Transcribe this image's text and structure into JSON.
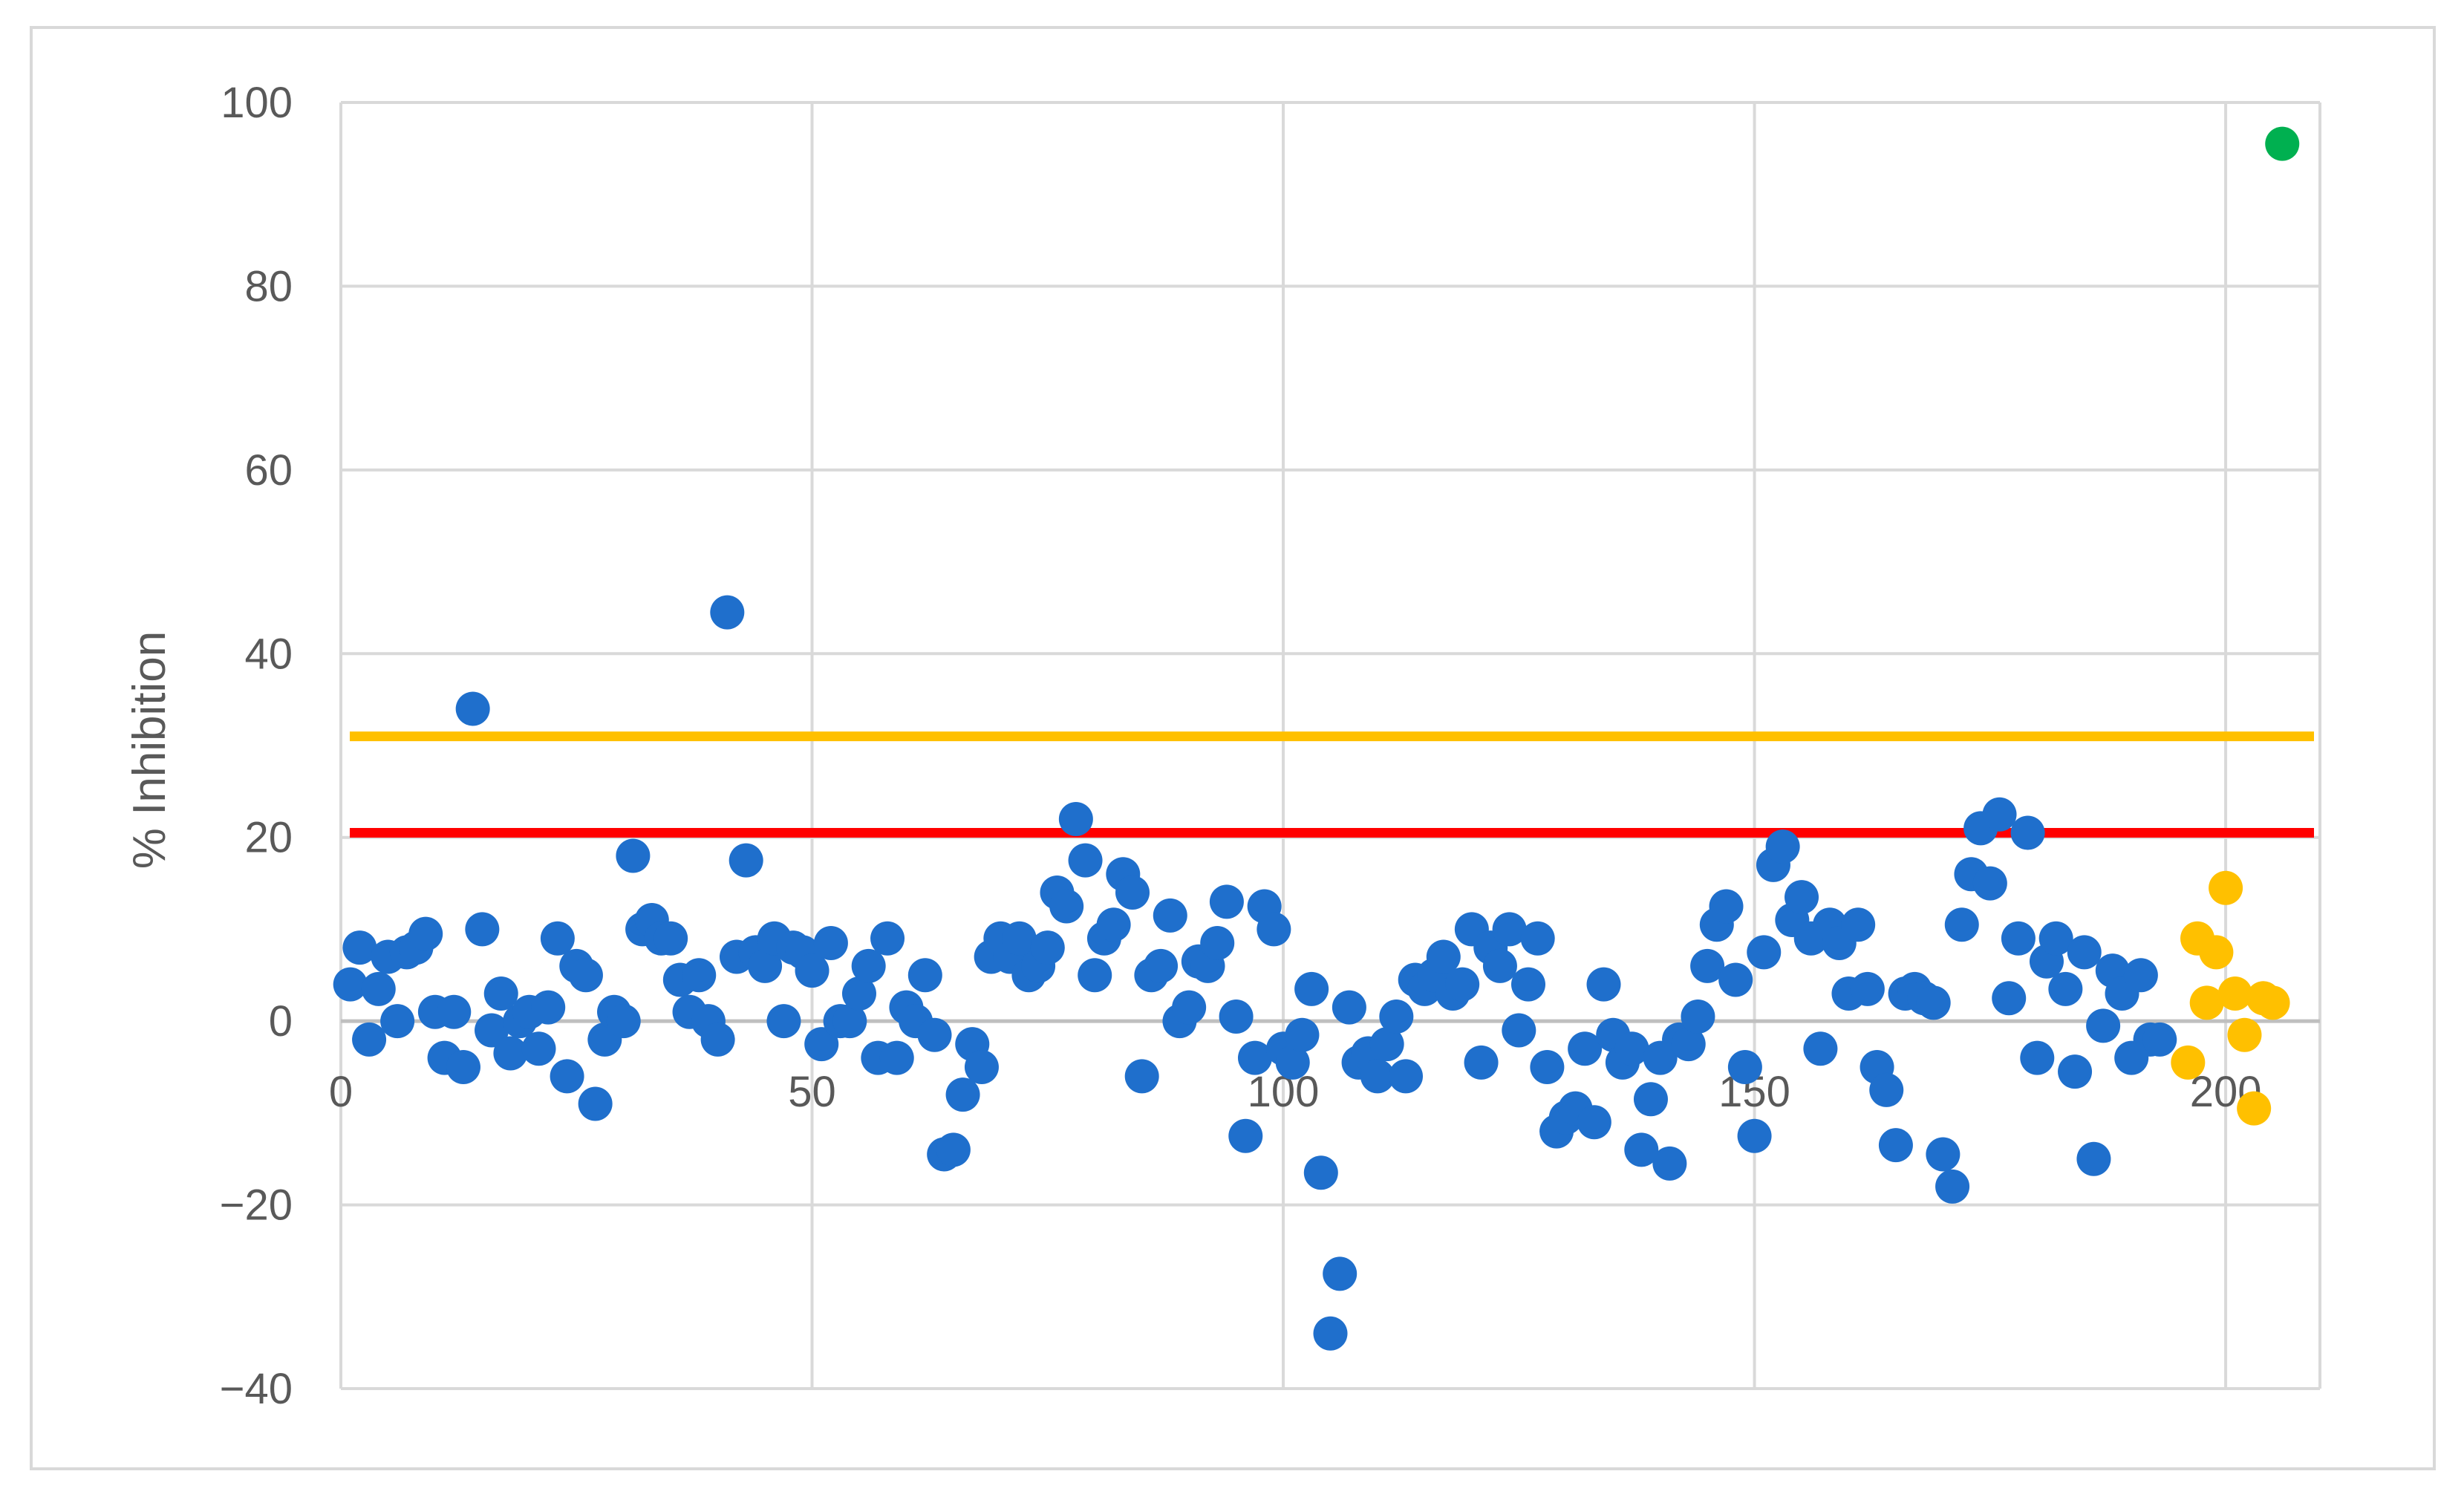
{
  "chart_data": {
    "type": "scatter",
    "title": "",
    "xlabel": "",
    "ylabel": "% Inhibition",
    "xlim": [
      0,
      210
    ],
    "ylim": [
      -40,
      100
    ],
    "x_ticks": [
      0,
      50,
      100,
      150,
      200
    ],
    "x_tick_labels": [
      "0",
      "50",
      "100",
      "150",
      "200"
    ],
    "y_ticks": [
      -40,
      -20,
      0,
      20,
      40,
      60,
      80,
      100
    ],
    "y_tick_labels": [
      "−40",
      "−20",
      "0",
      "20",
      "40",
      "60",
      "80",
      "100"
    ],
    "grid": "both",
    "legend": "none",
    "reference_lines": [
      {
        "y": 31,
        "color": "#FFC000"
      },
      {
        "y": 20.5,
        "color": "#FF0000"
      }
    ],
    "series": [
      {
        "color": "#1F6FCC",
        "points": [
          [
            1,
            4
          ],
          [
            2,
            8
          ],
          [
            3,
            -2
          ],
          [
            4,
            3.5
          ],
          [
            5,
            7
          ],
          [
            6,
            0
          ],
          [
            7,
            7.5
          ],
          [
            8,
            8
          ],
          [
            9,
            9.5
          ],
          [
            10,
            1
          ],
          [
            11,
            -4
          ],
          [
            12,
            1
          ],
          [
            13,
            -5
          ],
          [
            14,
            34
          ],
          [
            15,
            10
          ],
          [
            16,
            -1
          ],
          [
            17,
            3
          ],
          [
            18,
            -3.5
          ],
          [
            19,
            0
          ],
          [
            20,
            1
          ],
          [
            21,
            -3
          ],
          [
            22,
            1.5
          ],
          [
            23,
            9
          ],
          [
            24,
            -6
          ],
          [
            25,
            6
          ],
          [
            26,
            5
          ],
          [
            27,
            -9
          ],
          [
            28,
            -2
          ],
          [
            29,
            1
          ],
          [
            30,
            0
          ],
          [
            31,
            18
          ],
          [
            32,
            10
          ],
          [
            33,
            11
          ],
          [
            34,
            9
          ],
          [
            35,
            9
          ],
          [
            36,
            4.5
          ],
          [
            37,
            1
          ],
          [
            38,
            5
          ],
          [
            39,
            0
          ],
          [
            40,
            -2
          ],
          [
            41,
            44.5
          ],
          [
            42,
            7
          ],
          [
            43,
            17.5
          ],
          [
            44,
            7.5
          ],
          [
            45,
            6
          ],
          [
            46,
            9
          ],
          [
            47,
            0
          ],
          [
            48,
            8
          ],
          [
            49,
            7.5
          ],
          [
            50,
            5.5
          ],
          [
            51,
            -2.5
          ],
          [
            52,
            8.5
          ],
          [
            53,
            0
          ],
          [
            54,
            0
          ],
          [
            55,
            3
          ],
          [
            56,
            6
          ],
          [
            57,
            -4
          ],
          [
            58,
            9
          ],
          [
            59,
            -4
          ],
          [
            60,
            1.5
          ],
          [
            61,
            0
          ],
          [
            62,
            5
          ],
          [
            63,
            -1.5
          ],
          [
            64,
            -14.5
          ],
          [
            65,
            -14
          ],
          [
            66,
            -8
          ],
          [
            67,
            -2.5
          ],
          [
            68,
            -5
          ],
          [
            69,
            7
          ],
          [
            70,
            9
          ],
          [
            71,
            7
          ],
          [
            72,
            9
          ],
          [
            73,
            5
          ],
          [
            74,
            6
          ],
          [
            75,
            8
          ],
          [
            76,
            14
          ],
          [
            77,
            12.5
          ],
          [
            78,
            22
          ],
          [
            79,
            17.5
          ],
          [
            80,
            5
          ],
          [
            81,
            9
          ],
          [
            82,
            10.5
          ],
          [
            83,
            16
          ],
          [
            84,
            14
          ],
          [
            85,
            -6
          ],
          [
            86,
            5
          ],
          [
            87,
            6
          ],
          [
            88,
            11.5
          ],
          [
            89,
            0
          ],
          [
            90,
            1.5
          ],
          [
            91,
            6.5
          ],
          [
            92,
            6
          ],
          [
            93,
            8.5
          ],
          [
            94,
            13
          ],
          [
            95,
            0.5
          ],
          [
            96,
            -12.5
          ],
          [
            97,
            -4
          ],
          [
            98,
            12.5
          ],
          [
            99,
            10
          ],
          [
            100,
            -3
          ],
          [
            101,
            -4.5
          ],
          [
            102,
            -1.5
          ],
          [
            103,
            3.5
          ],
          [
            104,
            -16.5
          ],
          [
            105,
            -34
          ],
          [
            106,
            -27.5
          ],
          [
            107,
            1.5
          ],
          [
            108,
            -4.5
          ],
          [
            109,
            -3.5
          ],
          [
            110,
            -6
          ],
          [
            111,
            -2.5
          ],
          [
            112,
            0.5
          ],
          [
            113,
            -6
          ],
          [
            114,
            4.5
          ],
          [
            115,
            3.5
          ],
          [
            116,
            5
          ],
          [
            117,
            7
          ],
          [
            118,
            3
          ],
          [
            119,
            4
          ],
          [
            120,
            10
          ],
          [
            121,
            -4.5
          ],
          [
            122,
            8
          ],
          [
            123,
            6
          ],
          [
            124,
            10
          ],
          [
            125,
            -1
          ],
          [
            126,
            4
          ],
          [
            127,
            9
          ],
          [
            128,
            -5
          ],
          [
            129,
            -12
          ],
          [
            130,
            -10.5
          ],
          [
            131,
            -9.5
          ],
          [
            132,
            -3
          ],
          [
            133,
            -11
          ],
          [
            134,
            4
          ],
          [
            135,
            -1.5
          ],
          [
            136,
            -4.5
          ],
          [
            137,
            -3
          ],
          [
            138,
            -14
          ],
          [
            139,
            -8.5
          ],
          [
            140,
            -4
          ],
          [
            141,
            -15.5
          ],
          [
            142,
            -2
          ],
          [
            143,
            -2.5
          ],
          [
            144,
            0.5
          ],
          [
            145,
            6
          ],
          [
            146,
            10.5
          ],
          [
            147,
            12.5
          ],
          [
            148,
            4.5
          ],
          [
            149,
            -5
          ],
          [
            150,
            -12.5
          ],
          [
            151,
            7.5
          ],
          [
            152,
            17
          ],
          [
            153,
            19
          ],
          [
            154,
            11
          ],
          [
            155,
            13.5
          ],
          [
            156,
            9
          ],
          [
            157,
            -3
          ],
          [
            158,
            10.5
          ],
          [
            159,
            8.5
          ],
          [
            160,
            3
          ],
          [
            161,
            10.5
          ],
          [
            162,
            3.5
          ],
          [
            163,
            -5
          ],
          [
            164,
            -7.5
          ],
          [
            165,
            -13.5
          ],
          [
            166,
            3
          ],
          [
            167,
            3.5
          ],
          [
            168,
            2.5
          ],
          [
            169,
            2
          ],
          [
            170,
            -14.5
          ],
          [
            171,
            -18
          ],
          [
            172,
            10.5
          ],
          [
            173,
            16
          ],
          [
            174,
            21
          ],
          [
            175,
            15
          ],
          [
            176,
            22.5
          ],
          [
            177,
            2.5
          ],
          [
            178,
            9
          ],
          [
            179,
            20.5
          ],
          [
            180,
            -4
          ],
          [
            181,
            6.5
          ],
          [
            182,
            9
          ],
          [
            183,
            3.5
          ],
          [
            184,
            -5.5
          ],
          [
            185,
            7.5
          ],
          [
            186,
            -15
          ],
          [
            187,
            -0.5
          ],
          [
            188,
            5.5
          ],
          [
            189,
            3
          ],
          [
            190,
            -4
          ],
          [
            191,
            5
          ],
          [
            192,
            -2
          ],
          [
            193,
            -2
          ]
        ]
      },
      {
        "color": "#FFC000",
        "points": [
          [
            196,
            -4.5
          ],
          [
            197,
            9
          ],
          [
            198,
            2
          ],
          [
            199,
            7.5
          ],
          [
            200,
            14.5
          ],
          [
            201,
            3
          ],
          [
            202,
            -1.5
          ],
          [
            203,
            -9.5
          ],
          [
            204,
            2.5
          ],
          [
            205,
            2
          ]
        ]
      },
      {
        "color": "#00B050",
        "points": [
          [
            206,
            95.5
          ]
        ]
      }
    ]
  }
}
